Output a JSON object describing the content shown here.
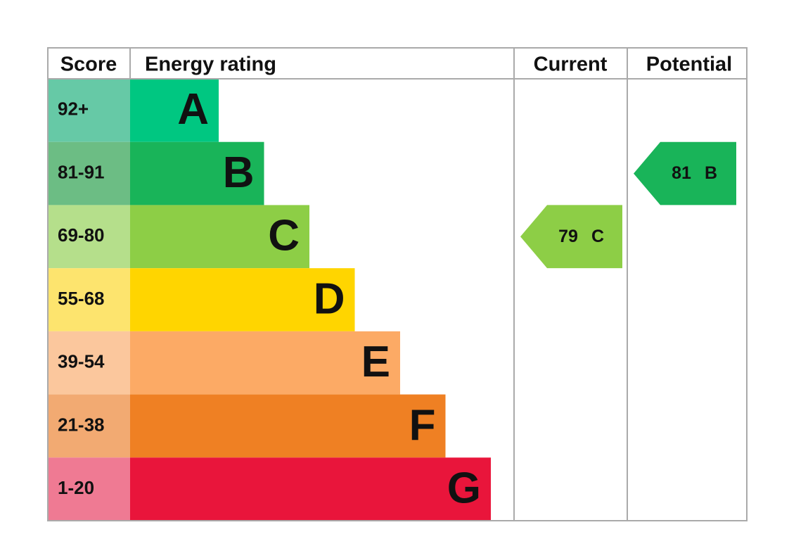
{
  "header": {
    "score": "Score",
    "energy_rating": "Energy rating",
    "current": "Current",
    "potential": "Potential"
  },
  "bands": [
    {
      "score": "92+",
      "letter": "A",
      "color": "#00c781",
      "light": "#66c9a6"
    },
    {
      "score": "81-91",
      "letter": "B",
      "color": "#19b459",
      "light": "#6cbd84"
    },
    {
      "score": "69-80",
      "letter": "C",
      "color": "#8dce46",
      "light": "#b5df8b"
    },
    {
      "score": "55-68",
      "letter": "D",
      "color": "#ffd500",
      "light": "#fde46e"
    },
    {
      "score": "39-54",
      "letter": "E",
      "color": "#fcaa65",
      "light": "#fbc79d"
    },
    {
      "score": "21-38",
      "letter": "F",
      "color": "#ef8023",
      "light": "#f2aa72"
    },
    {
      "score": "1-20",
      "letter": "G",
      "color": "#e9153b",
      "light": "#ef7a93"
    }
  ],
  "current": {
    "score": "79",
    "letter": "C"
  },
  "potential": {
    "score": "81",
    "letter": "B"
  }
}
